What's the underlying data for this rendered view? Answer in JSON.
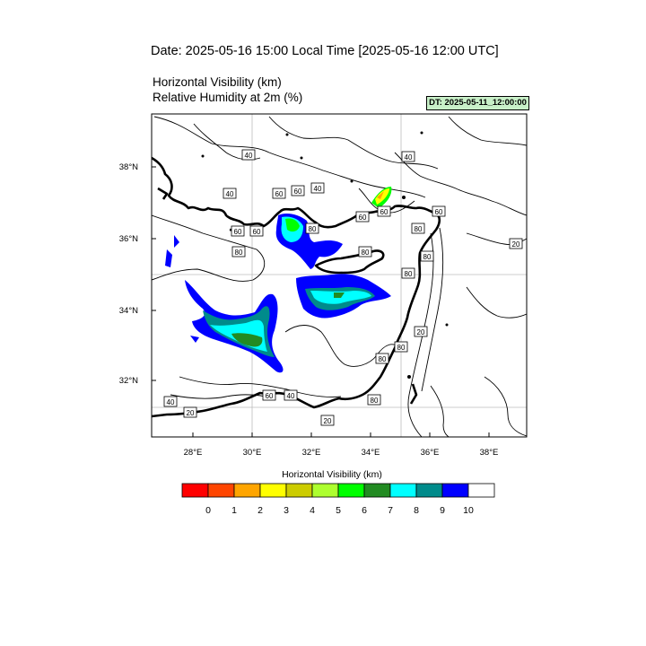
{
  "header": {
    "title": "Date: 2025-05-16  15:00 Local Time [2025-05-16  12:00 UTC]",
    "field1": "Horizontal Visibility   (km)",
    "field2": "Relative Humidity at 2m   (%)",
    "dt_badge": "DT: 2025-05-11_12:00:00"
  },
  "map": {
    "region": "Eastern Mediterranean",
    "lat_labels": [
      "38°N",
      "36°N",
      "34°N",
      "32°N"
    ],
    "lon_labels": [
      "28°E",
      "30°E",
      "32°E",
      "34°E",
      "36°E",
      "38°E"
    ],
    "contour_labels": [
      "40",
      "40",
      "40",
      "60",
      "60",
      "60",
      "80",
      "80",
      "60",
      "80",
      "60",
      "80",
      "40",
      "60",
      "80",
      "80",
      "20",
      "20",
      "80",
      "80",
      "40",
      "20",
      "60",
      "20",
      "80",
      "60",
      "40"
    ]
  },
  "colorbar": {
    "title": "Horizontal Visibility  (km)",
    "ticks": [
      "0",
      "1",
      "2",
      "3",
      "4",
      "5",
      "6",
      "7",
      "8",
      "9",
      "10"
    ],
    "colors": [
      "#ff0000",
      "#ff4500",
      "#ffa500",
      "#ffff00",
      "#cccc00",
      "#adff2f",
      "#00ff00",
      "#228b22",
      "#00ffff",
      "#008b8b",
      "#0000ff",
      "#ffffff"
    ]
  }
}
